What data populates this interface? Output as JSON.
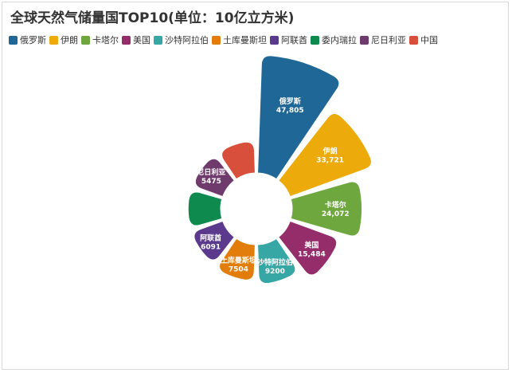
{
  "chart_data": {
    "type": "pie",
    "variant": "nightingale-rose-donut",
    "title": "全球天然气储量国TOP10(单位：10亿立方米)",
    "unit": "10亿立方米",
    "legend_position": "top-left",
    "categories": [
      "俄罗斯",
      "伊朗",
      "卡塔尔",
      "美国",
      "沙特阿拉伯",
      "土库曼斯坦",
      "阿联酋",
      "委内瑞拉",
      "尼日利亚",
      "中国"
    ],
    "values": [
      47805,
      33721,
      24072,
      15484,
      9200,
      7504,
      6091,
      5700,
      5475,
      5400
    ],
    "value_labels": [
      "47,805",
      "33,721",
      "24,072",
      "15,484",
      "9200",
      "7504",
      "6091",
      "",
      "5475",
      ""
    ],
    "slice_labels_shown": [
      true,
      true,
      true,
      true,
      true,
      true,
      true,
      false,
      true,
      false
    ],
    "colors": [
      "#1e6796",
      "#ecab0b",
      "#6ea73d",
      "#952d6b",
      "#36a7a5",
      "#e27d0c",
      "#5b3a8e",
      "#0f8a4f",
      "#6f3a6c",
      "#d8503b"
    ]
  }
}
